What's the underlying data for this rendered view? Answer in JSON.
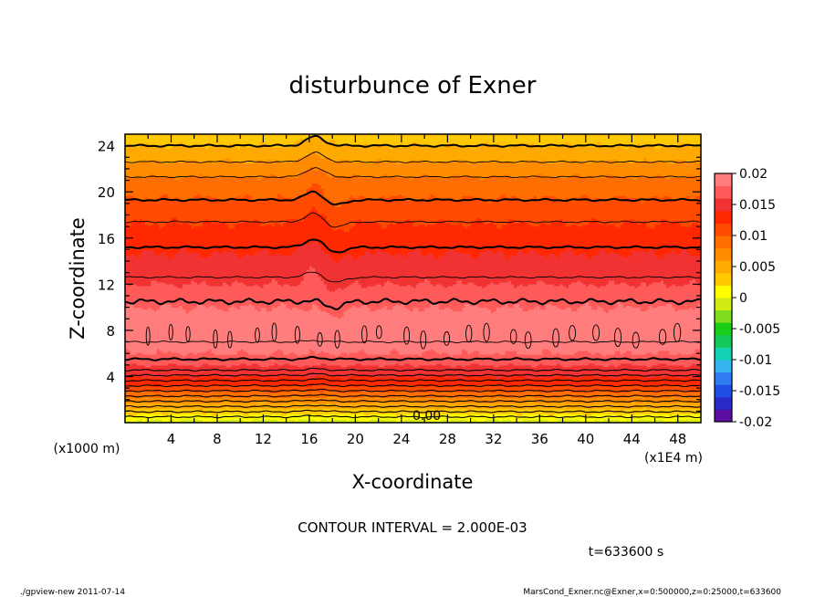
{
  "chart_data": {
    "type": "heatmap",
    "title": "disturbunce of Exner",
    "xlabel": "X-coordinate",
    "ylabel": "Z-coordinate",
    "x_unit": "(x1E4 m)",
    "y_unit": "(x1000 m)",
    "xlim": [
      0,
      50
    ],
    "ylim": [
      0,
      25
    ],
    "x_ticks": [
      4,
      8,
      12,
      16,
      20,
      24,
      28,
      32,
      36,
      40,
      44,
      48
    ],
    "y_ticks": [
      4,
      8,
      12,
      16,
      20,
      24
    ],
    "colorbar": {
      "ticks": [
        0.02,
        0.015,
        0.01,
        0.005,
        0,
        -0.005,
        -0.01,
        -0.015,
        -0.02
      ],
      "tick_labels": [
        "0.02",
        "0.015",
        "0.01",
        "0.005",
        "0",
        "-0.005",
        "-0.01",
        "-0.015",
        "-0.02"
      ],
      "range": [
        -0.02,
        0.02
      ],
      "colors": [
        "#5a0fa0",
        "#2a2ac8",
        "#1e50e6",
        "#2f7cf0",
        "#35b4f0",
        "#14d2b4",
        "#15c85a",
        "#19cd19",
        "#7ddc1e",
        "#d2eb14",
        "#ffff00",
        "#ffc800",
        "#ffaa00",
        "#ff8c00",
        "#ff6e00",
        "#ff4b00",
        "#ff2800",
        "#f03232",
        "#ff5a5a",
        "#ff7d7d"
      ]
    },
    "field_profile": {
      "z": [
        0,
        0.5,
        1,
        1.5,
        2,
        2.5,
        3,
        3.5,
        4,
        4.5,
        5,
        5.5,
        6,
        7,
        8,
        9,
        10,
        11,
        12,
        13,
        14,
        15,
        16,
        17,
        18,
        19,
        20,
        21,
        22,
        23,
        24,
        25
      ],
      "value": [
        -0.001,
        0.001,
        0.003,
        0.005,
        0.007,
        0.009,
        0.011,
        0.013,
        0.014,
        0.015,
        0.016,
        0.017,
        0.018,
        0.0188,
        0.019,
        0.0188,
        0.018,
        0.0172,
        0.016,
        0.0152,
        0.0145,
        0.0138,
        0.013,
        0.0122,
        0.0115,
        0.0105,
        0.0095,
        0.0085,
        0.007,
        0.0055,
        0.004,
        0.003
      ]
    },
    "thick_contours_z": [
      5.5,
      10.5,
      15.2,
      19.3,
      24
    ],
    "bump_x": [
      16.5
    ],
    "contour_label": "0.00",
    "contour_interval_text": "CONTOUR INTERVAL = 2.000E-03",
    "time_text": "t=633600 s"
  },
  "footer": {
    "left": "./gpview-new  2011-07-14",
    "right": "MarsCond_Exner.nc@Exner,x=0:500000,z=0:25000,t=633600"
  }
}
